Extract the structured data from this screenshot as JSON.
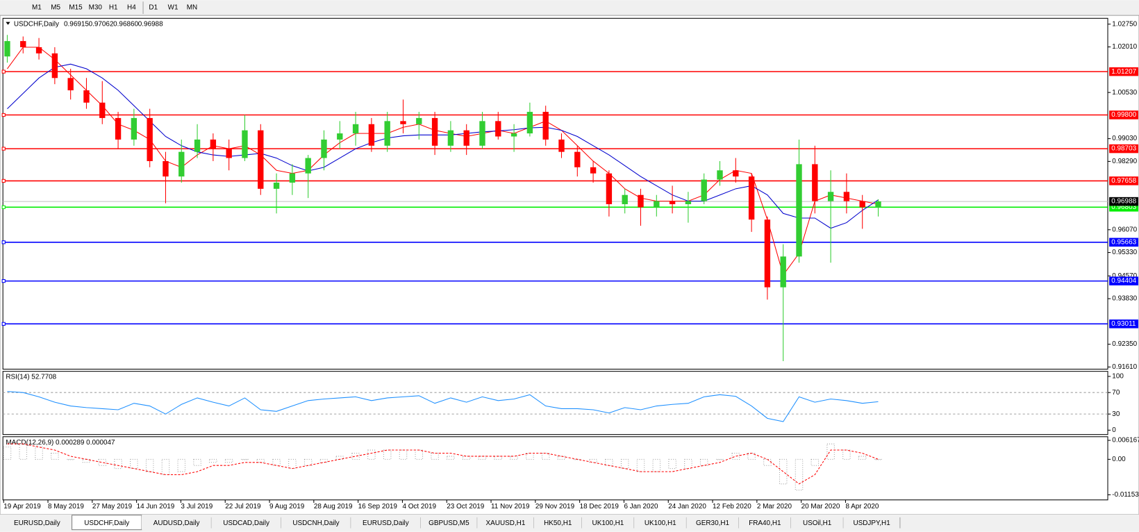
{
  "toolbar": {
    "timeframes": [
      "M1",
      "M5",
      "M15",
      "M30",
      "H1",
      "H4",
      "D1",
      "W1",
      "MN"
    ]
  },
  "tabs": {
    "items": [
      "EURUSD,Daily",
      "USDCHF,Daily",
      "AUDUSD,Daily",
      "USDCAD,Daily",
      "USDCNH,Daily",
      "EURUSD,Daily",
      "GBPUSD,M5",
      "XAUUSD,H1",
      "HK50,H1",
      "UK100,H1",
      "UK100,H1",
      "GER30,H1",
      "FRA40,H1",
      "USOil,H1",
      "USDJPY,H1"
    ],
    "active": 1
  },
  "date_axis": [
    "19 Apr 2019",
    "8 May 2019",
    "27 May 2019",
    "14 Jun 2019",
    "3 Jul 2019",
    "22 Jul 2019",
    "9 Aug 2019",
    "28 Aug 2019",
    "16 Sep 2019",
    "4 Oct 2019",
    "23 Oct 2019",
    "11 Nov 2019",
    "29 Nov 2019",
    "18 Dec 2019",
    "6 Jan 2020",
    "24 Jan 2020",
    "12 Feb 2020",
    "2 Mar 2020",
    "20 Mar 2020",
    "8 Apr 2020"
  ],
  "chart_data": [
    {
      "type": "candlestick",
      "title": "USDCHF,Daily",
      "quote": [
        "0.96915",
        "0.97062",
        "0.96860",
        "0.96988"
      ],
      "up_color": "#32cd32",
      "down_color": "#ff0000",
      "ylim": [
        0.9154,
        1.0294
      ],
      "yticks": [
        {
          "value": 1.0275,
          "label": "1.02750"
        },
        {
          "value": 1.0201,
          "label": "1.02010"
        },
        {
          "value": 1.0053,
          "label": "1.00530"
        },
        {
          "value": 0.9903,
          "label": "0.99030"
        },
        {
          "value": 0.9829,
          "label": "0.98290"
        },
        {
          "value": 0.9607,
          "label": "0.96070"
        },
        {
          "value": 0.9533,
          "label": "0.95330"
        },
        {
          "value": 0.9457,
          "label": "0.94570"
        },
        {
          "value": 0.9383,
          "label": "0.93830"
        },
        {
          "value": 0.9235,
          "label": "0.92350"
        },
        {
          "value": 0.9161,
          "label": "0.91610"
        }
      ],
      "levels": [
        {
          "value": 1.01207,
          "label": "1.01207",
          "color": "#ff0000"
        },
        {
          "value": 0.998,
          "label": "0.99800",
          "color": "#ff0000"
        },
        {
          "value": 0.98703,
          "label": "0.98703",
          "color": "#ff0000"
        },
        {
          "value": 0.97658,
          "label": "0.97658",
          "color": "#ff0000"
        },
        {
          "value": 0.96803,
          "label": "0.96803",
          "color": "#00ee00"
        },
        {
          "value": 0.95663,
          "label": "0.95663",
          "color": "#0000ff"
        },
        {
          "value": 0.94404,
          "label": "0.94404",
          "color": "#0000ff"
        },
        {
          "value": 0.93011,
          "label": "0.93011",
          "color": "#0000ff"
        }
      ],
      "current": {
        "value": 0.96988,
        "label": "0.96988"
      },
      "ohlc": [
        [
          1.017,
          1.024,
          1.015,
          1.022
        ],
        [
          1.022,
          1.0235,
          1.018,
          1.02
        ],
        [
          1.02,
          1.023,
          1.016,
          1.018
        ],
        [
          1.018,
          1.02,
          1.008,
          1.01
        ],
        [
          1.01,
          1.013,
          1.003,
          1.006
        ],
        [
          1.006,
          1.01,
          1.0,
          1.002
        ],
        [
          1.002,
          1.009,
          0.995,
          0.997
        ],
        [
          0.997,
          0.999,
          0.987,
          0.99
        ],
        [
          0.99,
          1.0,
          0.988,
          0.997
        ],
        [
          0.997,
          1.0,
          0.981,
          0.983
        ],
        [
          0.983,
          0.986,
          0.9693,
          0.978
        ],
        [
          0.978,
          0.99,
          0.976,
          0.986
        ],
        [
          0.986,
          0.995,
          0.984,
          0.99
        ],
        [
          0.99,
          0.992,
          0.983,
          0.987
        ],
        [
          0.987,
          0.99,
          0.98,
          0.984
        ],
        [
          0.984,
          0.998,
          0.983,
          0.993
        ],
        [
          0.993,
          0.995,
          0.972,
          0.974
        ],
        [
          0.974,
          0.979,
          0.966,
          0.976
        ],
        [
          0.976,
          0.982,
          0.972,
          0.979
        ],
        [
          0.979,
          0.985,
          0.971,
          0.984
        ],
        [
          0.984,
          0.993,
          0.98,
          0.99
        ],
        [
          0.99,
          0.996,
          0.987,
          0.992
        ],
        [
          0.992,
          0.999,
          0.988,
          0.995
        ],
        [
          0.995,
          0.997,
          0.986,
          0.988
        ],
        [
          0.988,
          0.999,
          0.986,
          0.996
        ],
        [
          0.996,
          1.003,
          0.992,
          0.995
        ],
        [
          0.995,
          0.999,
          0.99,
          0.997
        ],
        [
          0.997,
          0.999,
          0.985,
          0.988
        ],
        [
          0.988,
          0.996,
          0.986,
          0.993
        ],
        [
          0.993,
          0.995,
          0.985,
          0.988
        ],
        [
          0.988,
          0.999,
          0.987,
          0.996
        ],
        [
          0.996,
          0.999,
          0.99,
          0.991
        ],
        [
          0.991,
          0.995,
          0.986,
          0.992
        ],
        [
          0.992,
          1.002,
          0.991,
          0.999
        ],
        [
          0.999,
          1.001,
          0.988,
          0.99
        ],
        [
          0.99,
          0.992,
          0.984,
          0.986
        ],
        [
          0.986,
          0.988,
          0.978,
          0.981
        ],
        [
          0.981,
          0.983,
          0.976,
          0.979
        ],
        [
          0.979,
          0.98,
          0.965,
          0.969
        ],
        [
          0.969,
          0.974,
          0.966,
          0.972
        ],
        [
          0.972,
          0.974,
          0.962,
          0.968
        ],
        [
          0.968,
          0.972,
          0.965,
          0.97
        ],
        [
          0.97,
          0.975,
          0.966,
          0.969
        ],
        [
          0.969,
          0.973,
          0.963,
          0.97
        ],
        [
          0.97,
          0.979,
          0.969,
          0.977
        ],
        [
          0.977,
          0.983,
          0.975,
          0.98
        ],
        [
          0.98,
          0.984,
          0.976,
          0.978
        ],
        [
          0.978,
          0.979,
          0.96,
          0.964
        ],
        [
          0.964,
          0.965,
          0.938,
          0.942
        ],
        [
          0.942,
          0.956,
          0.918,
          0.952
        ],
        [
          0.952,
          0.99,
          0.95,
          0.982
        ],
        [
          0.982,
          0.988,
          0.966,
          0.97
        ],
        [
          0.97,
          0.98,
          0.95,
          0.973
        ],
        [
          0.973,
          0.979,
          0.966,
          0.97
        ],
        [
          0.97,
          0.972,
          0.961,
          0.968
        ],
        [
          0.968,
          0.9706,
          0.965,
          0.9699
        ]
      ],
      "ma_lines": [
        {
          "color": "#ff0000",
          "values": [
            1.013,
            1.02,
            1.02,
            1.016,
            1.011,
            1.006,
            1.001,
            0.995,
            0.993,
            0.99,
            0.983,
            0.981,
            0.985,
            0.988,
            0.987,
            0.988,
            0.985,
            0.98,
            0.979,
            0.98,
            0.985,
            0.989,
            0.992,
            0.992,
            0.992,
            0.994,
            0.995,
            0.993,
            0.992,
            0.991,
            0.992,
            0.993,
            0.992,
            0.994,
            0.996,
            0.993,
            0.988,
            0.983,
            0.979,
            0.974,
            0.971,
            0.97,
            0.97,
            0.97,
            0.972,
            0.977,
            0.98,
            0.979,
            0.964,
            0.946,
            0.953,
            0.97,
            0.972,
            0.971,
            0.97,
            0.969
          ]
        },
        {
          "color": "#0000cd",
          "values": [
            1.0,
            1.005,
            1.01,
            1.0135,
            1.0145,
            1.013,
            1.01,
            1.006,
            1.001,
            0.996,
            0.991,
            0.988,
            0.986,
            0.985,
            0.9845,
            0.985,
            0.9855,
            0.984,
            0.9815,
            0.9798,
            0.981,
            0.984,
            0.987,
            0.989,
            0.9905,
            0.9912,
            0.9915,
            0.9915,
            0.9915,
            0.992,
            0.9925,
            0.9928,
            0.9932,
            0.9938,
            0.994,
            0.993,
            0.991,
            0.988,
            0.985,
            0.9815,
            0.978,
            0.975,
            0.972,
            0.97,
            0.97,
            0.972,
            0.974,
            0.975,
            0.972,
            0.966,
            0.9645,
            0.9645,
            0.9612,
            0.963,
            0.967,
            0.9704
          ]
        }
      ]
    },
    {
      "type": "line",
      "title": "RSI(14) 52.7708",
      "color": "#1e90ff",
      "ylim": [
        0,
        100
      ],
      "yticks": [
        100,
        70,
        30,
        0
      ],
      "values": [
        72,
        70,
        62,
        52,
        45,
        42,
        40,
        38,
        50,
        45,
        30,
        48,
        60,
        52,
        45,
        60,
        38,
        35,
        45,
        55,
        58,
        60,
        62,
        55,
        60,
        62,
        64,
        50,
        60,
        52,
        62,
        55,
        58,
        66,
        45,
        40,
        40,
        38,
        32,
        42,
        38,
        45,
        48,
        50,
        62,
        66,
        63,
        45,
        22,
        16,
        62,
        52,
        58,
        55,
        50,
        53
      ]
    },
    {
      "type": "macd",
      "title": "MACD(12,26,9) 0.000289 0.000047",
      "hist_color": "#a0a0a0",
      "signal_color": "#ff0000",
      "ylim": [
        -0.011531,
        0.006167
      ],
      "yticks": [
        0.006167,
        {
          "value": 0,
          "label": "0.00"
        },
        -0.011531
      ],
      "histogram": [
        0.004,
        0.005,
        0.004,
        0.002,
        0.0,
        -0.001,
        -0.002,
        -0.003,
        -0.003,
        -0.004,
        -0.005,
        -0.004,
        -0.002,
        -0.001,
        -0.001,
        0.0,
        -0.001,
        -0.002,
        -0.003,
        -0.002,
        -0.001,
        0.001,
        0.002,
        0.003,
        0.003,
        0.003,
        0.003,
        0.002,
        0.001,
        0.001,
        0.001,
        0.001,
        0.001,
        0.002,
        0.002,
        0.001,
        0.0,
        -0.001,
        -0.002,
        -0.003,
        -0.004,
        -0.004,
        -0.003,
        -0.003,
        -0.002,
        0.0,
        0.002,
        0.002,
        -0.002,
        -0.008,
        -0.01,
        -0.002,
        0.005,
        0.003,
        0.001,
        0.0
      ],
      "signal": [
        0.005,
        0.005,
        0.004,
        0.003,
        0.001,
        0.0,
        -0.001,
        -0.002,
        -0.003,
        -0.004,
        -0.005,
        -0.005,
        -0.004,
        -0.002,
        -0.002,
        -0.001,
        -0.001,
        -0.002,
        -0.003,
        -0.002,
        -0.001,
        0.0,
        0.001,
        0.002,
        0.003,
        0.003,
        0.003,
        0.002,
        0.002,
        0.001,
        0.001,
        0.001,
        0.001,
        0.002,
        0.002,
        0.001,
        0.0,
        -0.001,
        -0.002,
        -0.003,
        -0.004,
        -0.004,
        -0.004,
        -0.003,
        -0.002,
        -0.001,
        0.001,
        0.002,
        0.0,
        -0.004,
        -0.008,
        -0.005,
        0.003,
        0.003,
        0.002,
        0.0
      ]
    }
  ]
}
